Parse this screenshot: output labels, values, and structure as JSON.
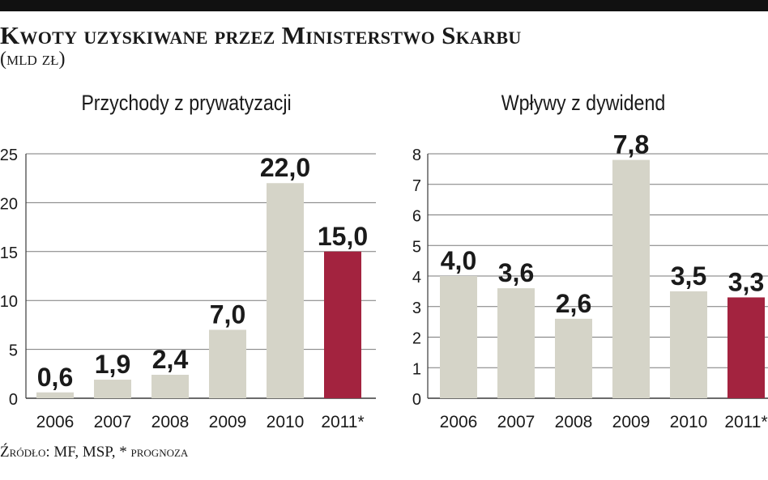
{
  "header": {
    "title": "Kwoty uzyskiwane przez Ministerstwo Skarbu",
    "unit": "(mld zł)"
  },
  "footer": {
    "source": "Źródło: MF, MSP, * prognoza"
  },
  "colors": {
    "bar": "#d5d4c8",
    "highlight": "#a3233f",
    "axis": "#3a3a3a",
    "text": "#1a1a1a"
  },
  "chart_data": [
    {
      "type": "bar",
      "title": "Przychody z prywatyzacji",
      "categories": [
        "2006",
        "2007",
        "2008",
        "2009",
        "2010",
        "2011*"
      ],
      "values": [
        0.6,
        1.9,
        2.4,
        7.0,
        22.0,
        15.0
      ],
      "value_labels": [
        "0,6",
        "1,9",
        "2,4",
        "7,0",
        "22,0",
        "15,0"
      ],
      "highlight_index": 5,
      "ylim": [
        0,
        25
      ],
      "yticks": [
        0,
        5,
        10,
        15,
        20,
        25
      ],
      "ytick_labels": [
        "0",
        "5",
        "10",
        "15",
        "20",
        "25"
      ],
      "grid": true,
      "xlabel": "",
      "ylabel": ""
    },
    {
      "type": "bar",
      "title": "Wpływy z dywidend",
      "categories": [
        "2006",
        "2007",
        "2008",
        "2009",
        "2010",
        "2011*"
      ],
      "values": [
        4.0,
        3.6,
        2.6,
        7.8,
        3.5,
        3.3
      ],
      "value_labels": [
        "4,0",
        "3,6",
        "2,6",
        "7,8",
        "3,5",
        "3,3"
      ],
      "highlight_index": 5,
      "ylim": [
        0,
        8
      ],
      "yticks": [
        0,
        1,
        2,
        3,
        4,
        5,
        6,
        7,
        8
      ],
      "ytick_labels": [
        "0",
        "1",
        "2",
        "3",
        "4",
        "5",
        "6",
        "7",
        "8"
      ],
      "grid": true,
      "xlabel": "",
      "ylabel": ""
    }
  ]
}
